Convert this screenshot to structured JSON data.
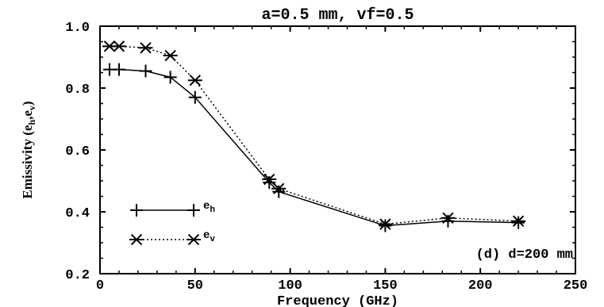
{
  "chart_data": {
    "type": "line",
    "title": "a=0.5 mm, vf=0.5",
    "xlabel": "Frequency (GHz)",
    "ylabel": "Emissivity (e_h, e_v)",
    "xlim": [
      0,
      250
    ],
    "ylim": [
      0.2,
      1.0
    ],
    "xticks": [
      0,
      50,
      100,
      150,
      200,
      250
    ],
    "yticks": [
      0.2,
      0.4,
      0.6,
      0.8,
      1.0
    ],
    "xtick_labels": [
      "0",
      "50",
      "100",
      "150",
      "200",
      "250"
    ],
    "ytick_labels": [
      "0.2",
      "0.4",
      "0.6",
      "0.8",
      "1.0"
    ],
    "annotation": "(d) d=200 mm",
    "grid": false,
    "legend_position": "lower-left",
    "series": [
      {
        "name": "e_h",
        "legend_label": "eh",
        "marker": "plus",
        "line_style": "solid",
        "color": "#000000",
        "x": [
          5,
          10,
          24,
          37,
          50,
          89,
          94,
          150,
          183,
          220
        ],
        "y": [
          0.86,
          0.86,
          0.855,
          0.835,
          0.77,
          0.495,
          0.465,
          0.355,
          0.37,
          0.365
        ]
      },
      {
        "name": "e_v",
        "legend_label": "ev",
        "marker": "asterisk",
        "line_style": "dotted",
        "color": "#000000",
        "x": [
          5,
          10,
          24,
          37,
          50,
          89,
          94,
          150,
          183,
          220
        ],
        "y": [
          0.935,
          0.935,
          0.93,
          0.905,
          0.825,
          0.505,
          0.475,
          0.36,
          0.38,
          0.37
        ]
      }
    ]
  }
}
